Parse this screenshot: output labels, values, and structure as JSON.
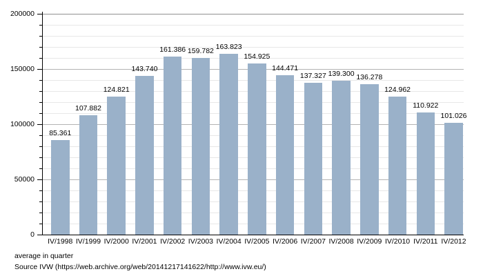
{
  "chart_data": {
    "type": "bar",
    "title": "",
    "xlabel": "",
    "ylabel": "",
    "categories": [
      "IV/1998",
      "IV/1999",
      "IV/2000",
      "IV/2001",
      "IV/2002",
      "IV/2003",
      "IV/2004",
      "IV/2005",
      "IV/2006",
      "IV/2007",
      "IV/2008",
      "IV/2009",
      "IV/2010",
      "IV/2011",
      "IV/2012"
    ],
    "values": [
      85361,
      107882,
      124821,
      143740,
      161386,
      159782,
      163823,
      154925,
      144471,
      137327,
      139300,
      136278,
      124962,
      110922,
      101026
    ],
    "value_labels": [
      "85.361",
      "107.882",
      "124.821",
      "143.740",
      "161.386",
      "159.782",
      "163.823",
      "154.925",
      "144.471",
      "137.327",
      "139.300",
      "136.278",
      "124.962",
      "110.922",
      "101.026"
    ],
    "ylim": [
      0,
      200000
    ],
    "yticks": [
      0,
      50000,
      100000,
      150000,
      200000
    ],
    "ytick_labels": [
      "0",
      "50000",
      "100000",
      "150000",
      "200000"
    ],
    "minor_tick_step": 10000,
    "grid": true,
    "legend": false,
    "colors": {
      "bar": "#9ab1c9",
      "grid_major": "#b3b3b3",
      "grid_top": "#8f8f8f",
      "grid_minor": "#e7e7e7",
      "axis": "#000000",
      "text": "#000000"
    }
  },
  "footer": {
    "caption": "average in quarter",
    "source": "Source IVW (https://web.archive.org/web/20141217141622/http://www.ivw.eu/)"
  }
}
